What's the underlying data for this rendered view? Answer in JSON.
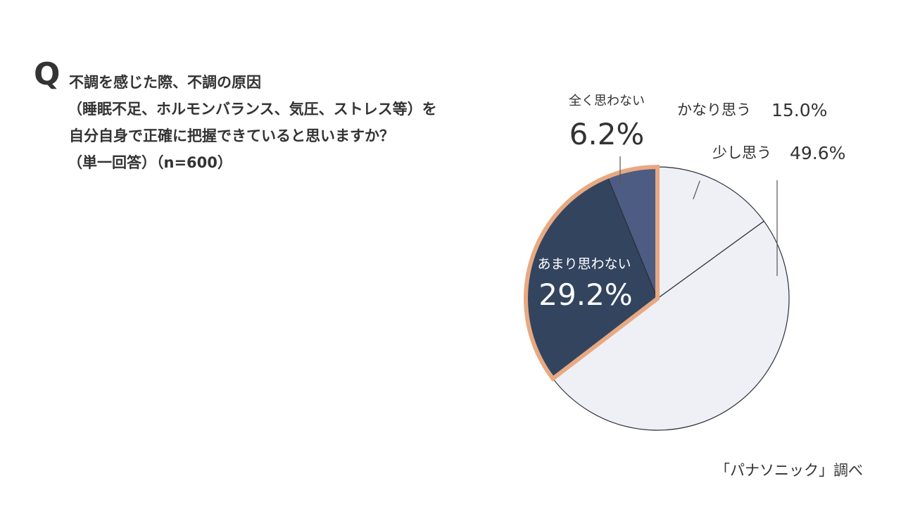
{
  "question": {
    "mark": "Q",
    "lines": [
      "不調を感じた際、不調の原因",
      "（睡眠不足、ホルモンバランス、気圧、ストレス等）を",
      "自分自身で正確に把握できていると思いますか？",
      "（単一回答）（n=600）"
    ]
  },
  "source": "「パナソニック」調べ",
  "colors": {
    "light": "#eef0f6",
    "dark": "#33445f",
    "mid": "#4d5c82",
    "highlight": "#e8a982",
    "text": "#333333"
  },
  "chart_data": {
    "type": "pie",
    "slices": [
      {
        "name": "かなり思う",
        "value": 15.0,
        "label": "15.0%",
        "color": "#eef0f6",
        "highlight": false
      },
      {
        "name": "少し思う",
        "value": 49.6,
        "label": "49.6%",
        "color": "#eef0f6",
        "highlight": false
      },
      {
        "name": "あまり思わない",
        "value": 29.2,
        "label": "29.2%",
        "color": "#33445f",
        "highlight": true
      },
      {
        "name": "全く思わない",
        "value": 6.2,
        "label": "6.2%",
        "color": "#4d5c82",
        "highlight": true
      }
    ],
    "start": "12 o'clock",
    "direction": "clockwise"
  }
}
